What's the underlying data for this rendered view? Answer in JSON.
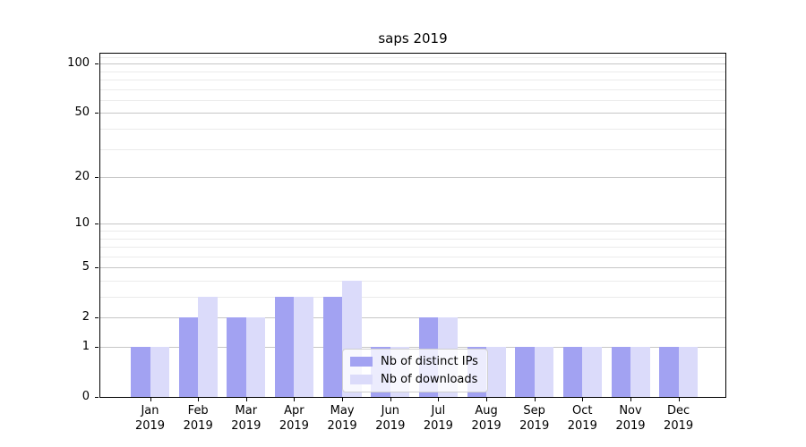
{
  "chart_data": {
    "type": "bar",
    "title": "saps 2019",
    "xlabel": "",
    "ylabel": "",
    "categories": [
      "Jan 2019",
      "Feb 2019",
      "Mar 2019",
      "Apr 2019",
      "May 2019",
      "Jun 2019",
      "Jul 2019",
      "Aug 2019",
      "Sep 2019",
      "Oct 2019",
      "Nov 2019",
      "Dec 2019"
    ],
    "series": [
      {
        "name": "Nb of distinct IPs",
        "color": "#a2a2f2",
        "values": [
          1,
          2,
          2,
          3,
          3,
          1,
          2,
          1,
          1,
          1,
          1,
          1
        ]
      },
      {
        "name": "Nb of downloads",
        "color": "#dbdbfa",
        "values": [
          1,
          3,
          2,
          3,
          4,
          1,
          2,
          1,
          1,
          1,
          1,
          1
        ]
      }
    ],
    "y_scale": "log1p",
    "ylim": [
      0,
      115
    ],
    "y_ticks_major": [
      0,
      1,
      2,
      5,
      10,
      20,
      50,
      100
    ],
    "y_ticks_minor": [
      3,
      4,
      6,
      7,
      8,
      9,
      30,
      40,
      60,
      70,
      80,
      90,
      110
    ],
    "grid": "horizontal",
    "legend_position": "lower-center-inside"
  },
  "colors": {
    "grid_major": "#c6c6c6",
    "grid_minor": "#ebebeb",
    "axis": "#000000",
    "legend_border": "#d0d0d0",
    "background": "#ffffff"
  }
}
